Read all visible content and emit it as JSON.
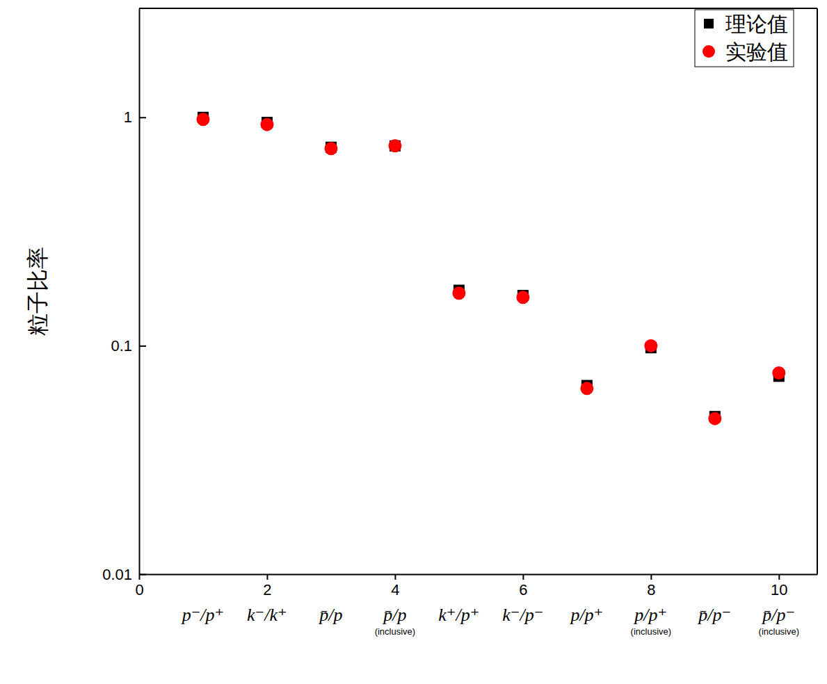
{
  "chart_data": {
    "type": "scatter",
    "y_label": "粒子比率",
    "x": [
      1,
      2,
      3,
      4,
      5,
      6,
      7,
      8,
      9,
      10
    ],
    "categories": [
      "p⁻/p⁺",
      "k⁻/k⁺",
      "p̄/p",
      "p̄/p\n(inclusive)",
      "k⁺/p⁺",
      "k⁻/p⁻",
      "p/p⁺",
      "p/p⁺\n(inclusive)",
      "p̄/p⁻",
      "p̄/p⁻\n(inclusive)"
    ],
    "series": [
      {
        "name": "理论值",
        "color": "#000000",
        "marker": "square",
        "values": [
          1.0,
          0.95,
          0.74,
          0.75,
          0.175,
          0.166,
          0.067,
          0.098,
          0.049,
          0.0735
        ]
      },
      {
        "name": "实验值",
        "color": "#ff0000",
        "marker": "circle",
        "values": [
          0.98,
          0.93,
          0.73,
          0.75,
          0.17,
          0.163,
          0.065,
          0.1,
          0.048,
          0.076
        ]
      }
    ],
    "xlim": [
      0,
      10.6
    ],
    "xticks": [
      0,
      2,
      4,
      6,
      8,
      10
    ],
    "ylim": [
      0.01,
      3
    ],
    "yticks": [
      0.01,
      0.1,
      1
    ],
    "log": "y",
    "grid": false,
    "legend": "upper right"
  }
}
